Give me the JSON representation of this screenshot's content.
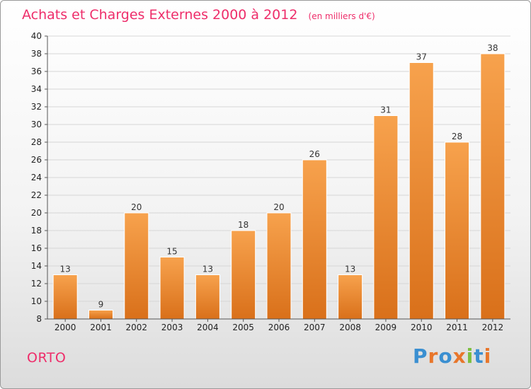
{
  "chart_data": {
    "type": "bar",
    "title": "Achats et Charges Externes 2000 à 2012",
    "subtitle": "(en milliers d'€)",
    "categories": [
      "2000",
      "2001",
      "2002",
      "2003",
      "2004",
      "2005",
      "2006",
      "2007",
      "2008",
      "2009",
      "2010",
      "2011",
      "2012"
    ],
    "values": [
      13,
      9,
      20,
      15,
      13,
      18,
      20,
      26,
      13,
      31,
      37,
      28,
      38
    ],
    "ylim": [
      8,
      40
    ],
    "yticks": [
      8,
      10,
      12,
      14,
      16,
      18,
      20,
      22,
      24,
      26,
      28,
      30,
      32,
      34,
      36,
      38,
      40
    ],
    "grid": true,
    "bar_color_top": "#f7a24d",
    "bar_color_bottom": "#d9701a",
    "title_color": "#ee2d6a"
  },
  "footer": {
    "commune": "ORTO",
    "logo_text": "Proxiti",
    "logo_colors": [
      "#3a8fd1",
      "#e8762b",
      "#3a8fd1",
      "#e8762b",
      "#7cbf3f",
      "#3a8fd1",
      "#e8762b"
    ]
  }
}
